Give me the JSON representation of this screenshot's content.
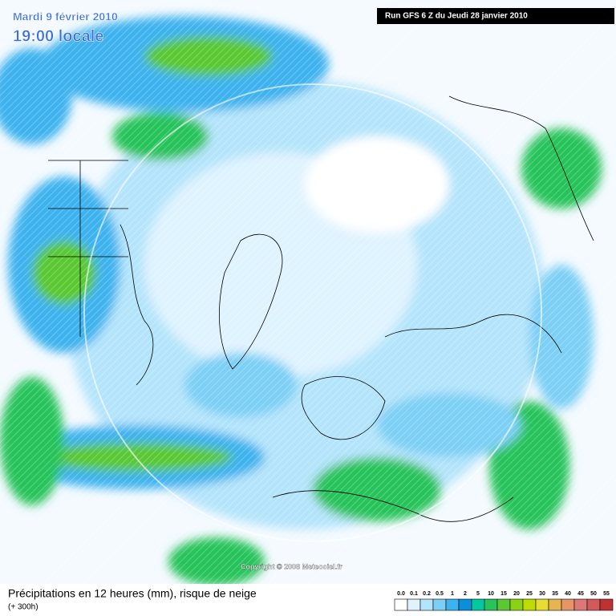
{
  "header": {
    "date": "Mardi 9 février 2010",
    "time": "19:00 locale",
    "run": "Run GFS 6 Z du Jeudi 28 janvier 2010"
  },
  "copyright": "Copyright © 2008 Meteociel.fr",
  "footer": {
    "title": "Précipitations en 12 heures (mm), risque de neige",
    "lead": "(+ 300h)"
  },
  "legend": {
    "labels": [
      "0.0",
      "0.1",
      "0.2",
      "0.5",
      "1",
      "2",
      "5",
      "10",
      "15",
      "20",
      "25",
      "30",
      "35",
      "40",
      "45",
      "50",
      "55"
    ],
    "colors": [
      "#ffffff",
      "#dff3ff",
      "#b4e4fb",
      "#7ccff5",
      "#3cb2ee",
      "#0a8fdc",
      "#00c8a0",
      "#28c35a",
      "#5ac832",
      "#8cd214",
      "#bedc00",
      "#e6dc32",
      "#e6b450",
      "#e69664",
      "#dc7878",
      "#d25a5a",
      "#be3232"
    ]
  }
}
